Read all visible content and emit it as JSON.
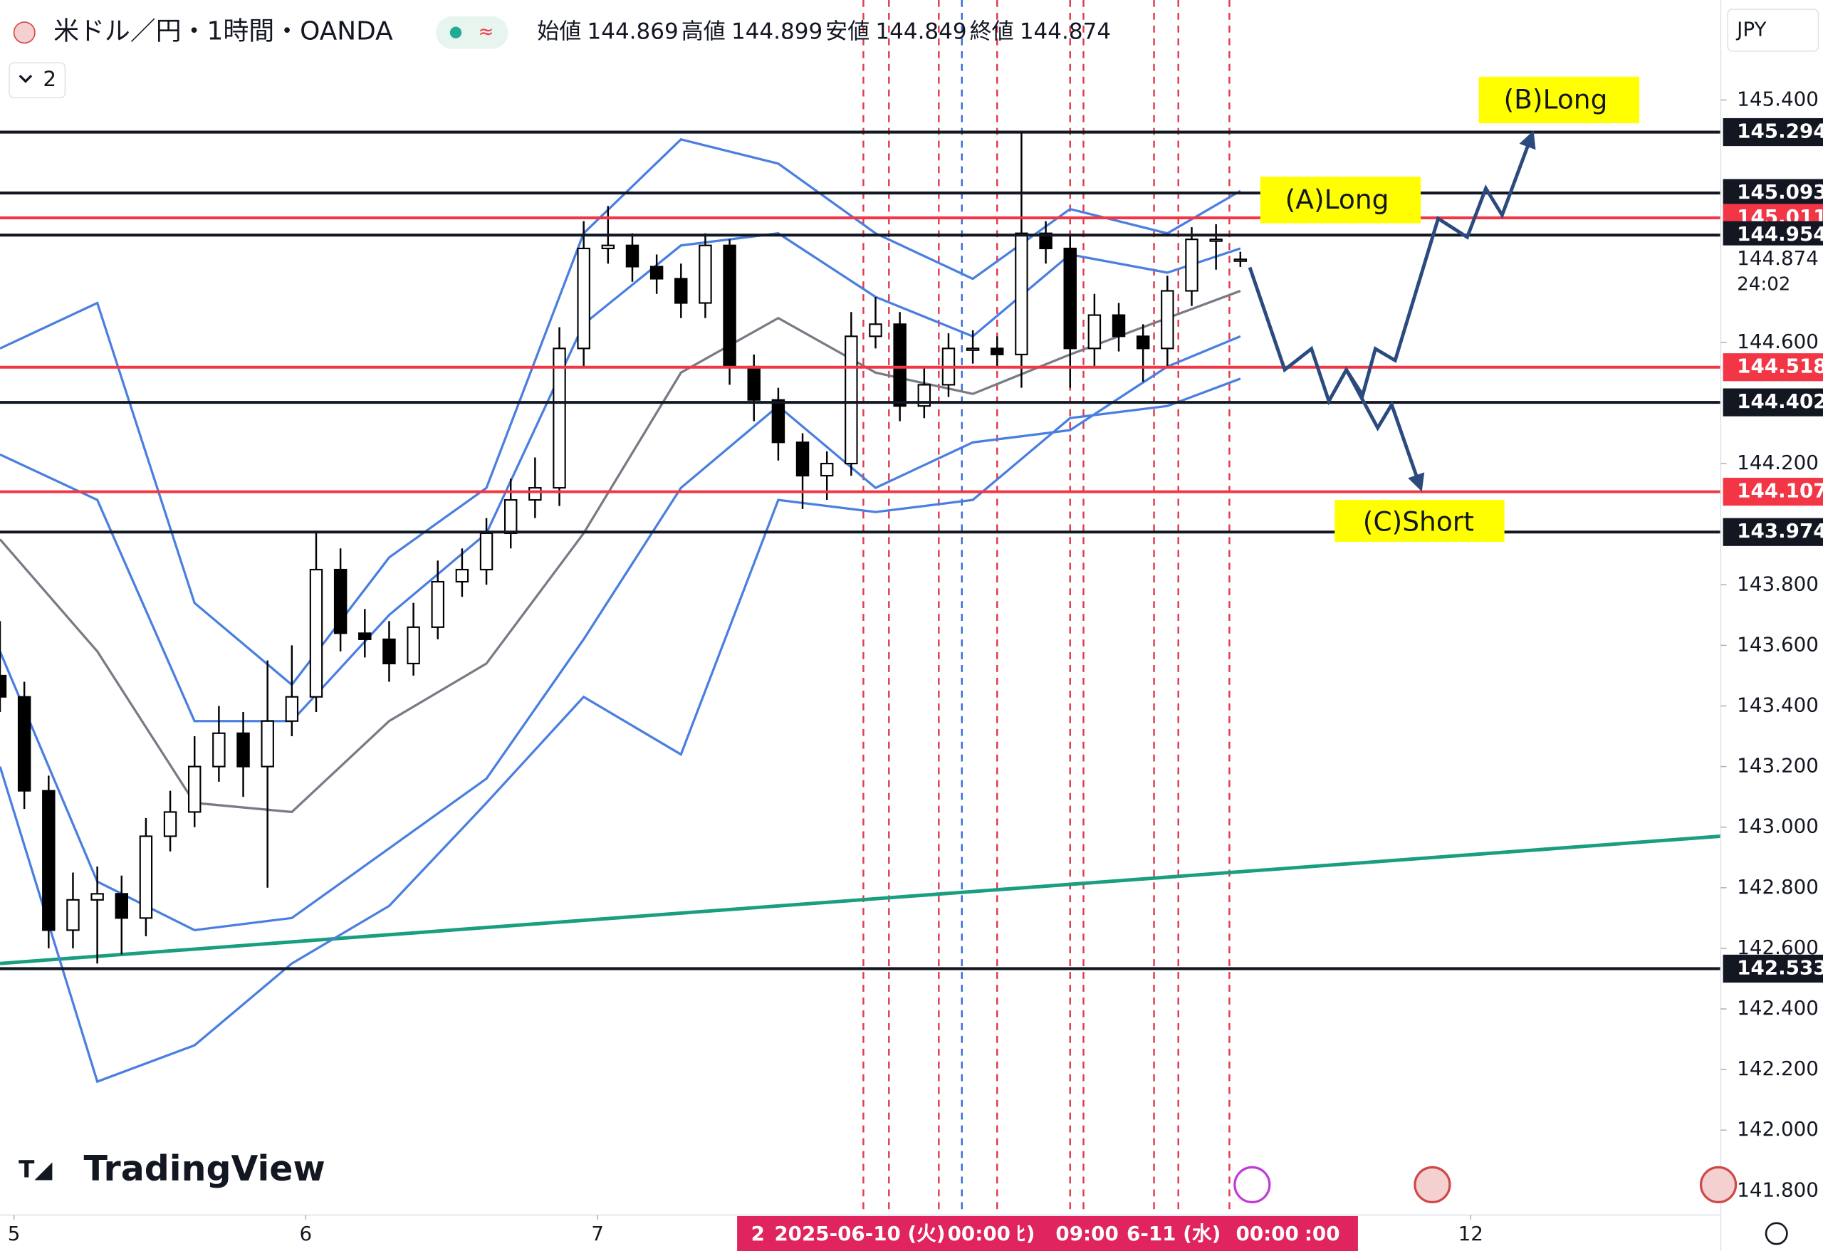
{
  "header": {
    "title": "米ドル／円・1時間・OANDA",
    "open_label": "始値",
    "high_label": "高値",
    "low_label": "安値",
    "close_label": "終値",
    "indicator_count": "2",
    "currency": "JPY",
    "countdown": "24:02",
    "brand": "TradingView"
  },
  "annotations": [
    "(A)Long",
    "(B)Long",
    "(C)Short"
  ],
  "time_labels": [
    "2",
    "2025-06-10 (火)",
    "00:00",
    "ﾋ)",
    "09:00",
    "6-11 (水)",
    "00:00",
    ":00"
  ],
  "chart_data": {
    "type": "candlestick",
    "x": [
      0,
      2,
      4,
      6,
      8,
      10,
      12,
      14,
      16,
      18,
      20,
      22,
      24,
      26,
      28,
      30,
      32,
      34,
      36,
      38,
      40,
      42,
      44,
      46,
      48,
      50,
      52,
      54,
      56,
      58,
      60,
      62,
      64,
      66,
      68,
      70,
      72,
      74,
      76,
      78,
      80,
      82,
      84,
      86,
      88,
      90,
      92,
      94,
      96,
      98,
      100,
      102
    ],
    "open": [
      143.5,
      143.43,
      143.12,
      142.66,
      142.76,
      142.78,
      142.7,
      142.97,
      143.05,
      143.2,
      143.31,
      143.2,
      143.35,
      143.43,
      143.85,
      143.64,
      143.62,
      143.54,
      143.66,
      143.81,
      143.85,
      143.97,
      144.08,
      144.12,
      144.58,
      144.91,
      144.92,
      144.85,
      144.81,
      144.73,
      144.92,
      144.52,
      144.41,
      144.27,
      144.16,
      144.2,
      144.62,
      144.66,
      144.39,
      144.46,
      144.58,
      144.58,
      144.56,
      144.96,
      144.91,
      144.58,
      144.69,
      144.62,
      144.58,
      144.77,
      144.94,
      144.869
    ],
    "high": [
      143.68,
      143.48,
      143.17,
      142.85,
      142.87,
      142.84,
      143.03,
      143.12,
      143.3,
      143.4,
      143.38,
      143.55,
      143.6,
      143.97,
      143.92,
      143.72,
      143.68,
      143.74,
      143.88,
      143.92,
      144.02,
      144.15,
      144.22,
      144.65,
      145.0,
      145.05,
      144.96,
      144.89,
      144.86,
      144.96,
      144.94,
      144.56,
      144.45,
      144.3,
      144.24,
      144.7,
      144.75,
      144.7,
      144.52,
      144.63,
      144.64,
      144.62,
      145.29,
      145.0,
      144.95,
      144.76,
      144.73,
      144.66,
      144.82,
      144.98,
      144.99,
      144.899
    ],
    "low": [
      143.38,
      143.06,
      142.6,
      142.6,
      142.55,
      142.58,
      142.64,
      142.92,
      143.0,
      143.15,
      143.1,
      142.8,
      143.3,
      143.38,
      143.58,
      143.56,
      143.48,
      143.5,
      143.62,
      143.76,
      143.8,
      143.92,
      144.02,
      144.06,
      144.52,
      144.86,
      144.8,
      144.76,
      144.68,
      144.68,
      144.46,
      144.34,
      144.21,
      144.05,
      144.08,
      144.16,
      144.58,
      144.34,
      144.35,
      144.42,
      144.53,
      144.52,
      144.45,
      144.86,
      144.45,
      144.52,
      144.57,
      144.47,
      144.52,
      144.72,
      144.84,
      144.849
    ],
    "close": [
      143.43,
      143.12,
      142.66,
      142.76,
      142.78,
      142.7,
      142.97,
      143.05,
      143.2,
      143.31,
      143.2,
      143.35,
      143.43,
      143.85,
      143.64,
      143.62,
      143.54,
      143.66,
      143.81,
      143.85,
      143.97,
      144.08,
      144.12,
      144.58,
      144.91,
      144.92,
      144.85,
      144.81,
      144.73,
      144.92,
      144.52,
      144.41,
      144.27,
      144.16,
      144.2,
      144.62,
      144.66,
      144.39,
      144.46,
      144.58,
      144.58,
      144.56,
      144.96,
      144.91,
      144.58,
      144.69,
      144.62,
      144.58,
      144.77,
      144.94,
      144.94,
      144.874
    ],
    "up_color": "#ffffff",
    "down_color": "#000000",
    "band_x": [
      0,
      8,
      16,
      24,
      32,
      40,
      48,
      56,
      64,
      72,
      80,
      88,
      96,
      102
    ],
    "bands": [
      {
        "color": "#787b86",
        "values": [
          143.95,
          143.58,
          143.08,
          143.05,
          143.35,
          143.54,
          143.97,
          144.5,
          144.68,
          144.5,
          144.43,
          144.56,
          144.68,
          144.77
        ]
      },
      {
        "color": "#4a7fe0",
        "values": [
          144.58,
          144.73,
          143.74,
          143.47,
          143.89,
          144.12,
          144.96,
          145.27,
          145.19,
          144.96,
          144.81,
          145.04,
          144.96,
          145.1
        ]
      },
      {
        "color": "#4a7fe0",
        "values": [
          144.23,
          144.08,
          143.35,
          143.35,
          143.7,
          143.97,
          144.66,
          144.92,
          144.96,
          144.75,
          144.62,
          144.89,
          144.83,
          144.91
        ]
      },
      {
        "color": "#4a7fe0",
        "values": [
          143.58,
          142.82,
          142.66,
          142.7,
          142.93,
          143.16,
          143.62,
          144.12,
          144.39,
          144.12,
          144.27,
          144.31,
          144.52,
          144.62
        ]
      },
      {
        "color": "#4a7fe0",
        "values": [
          143.2,
          142.16,
          142.28,
          142.55,
          142.74,
          143.08,
          143.43,
          143.24,
          144.08,
          144.04,
          144.08,
          144.35,
          144.39,
          144.48
        ]
      }
    ],
    "levels": [
      {
        "value": 145.294,
        "color": "#131722"
      },
      {
        "value": 145.093,
        "color": "#131722"
      },
      {
        "value": 145.011,
        "color": "#f23645"
      },
      {
        "value": 144.954,
        "color": "#131722"
      },
      {
        "value": 144.518,
        "color": "#f23645"
      },
      {
        "value": 144.402,
        "color": "#131722"
      },
      {
        "value": 144.107,
        "color": "#f23645"
      },
      {
        "value": 143.974,
        "color": "#131722"
      },
      {
        "value": 142.533,
        "color": "#131722"
      }
    ],
    "trendline": {
      "x": [
        0,
        141.5
      ],
      "values": [
        142.55,
        142.97
      ],
      "color": "#1a9e80"
    },
    "vlines": [
      {
        "x": 71.0,
        "color": "#e03c4e"
      },
      {
        "x": 73.1,
        "color": "#e03c4e"
      },
      {
        "x": 77.2,
        "color": "#e03c4e"
      },
      {
        "x": 79.1,
        "color": "#3a6fd8"
      },
      {
        "x": 82.0,
        "color": "#e03c4e"
      },
      {
        "x": 88.0,
        "color": "#e03c4e"
      },
      {
        "x": 89.1,
        "color": "#e03c4e"
      },
      {
        "x": 94.9,
        "color": "#e03c4e"
      },
      {
        "x": 96.9,
        "color": "#e03c4e"
      },
      {
        "x": 101.1,
        "color": "#e03c4e"
      }
    ],
    "xlim": [
      0,
      141.5
    ],
    "ylim": [
      141.72,
      145.73
    ],
    "xticks": [
      {
        "value": 1.15,
        "label": "5"
      },
      {
        "value": 25.14,
        "label": "6"
      },
      {
        "value": 49.14,
        "label": "7"
      },
      {
        "value": 120.94,
        "label": "12"
      }
    ],
    "yticks": [
      {
        "value": 145.4,
        "label": "145.400"
      },
      {
        "value": 144.6,
        "label": "144.600"
      },
      {
        "value": 144.2,
        "label": "144.200"
      },
      {
        "value": 143.8,
        "label": "143.800"
      },
      {
        "value": 143.6,
        "label": "143.600"
      },
      {
        "value": 143.4,
        "label": "143.400"
      },
      {
        "value": 143.2,
        "label": "143.200"
      },
      {
        "value": 143.0,
        "label": "143.000"
      },
      {
        "value": 142.8,
        "label": "142.800"
      },
      {
        "value": 142.6,
        "label": "142.600"
      },
      {
        "value": 142.4,
        "label": "142.400"
      },
      {
        "value": 142.2,
        "label": "142.200"
      },
      {
        "value": 142.0,
        "label": "142.000"
      },
      {
        "value": 141.8,
        "label": "141.800"
      }
    ],
    "grid": false
  }
}
